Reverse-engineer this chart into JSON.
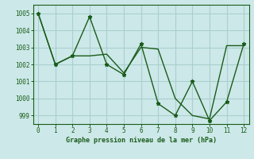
{
  "line1_x": [
    0,
    1,
    2,
    3,
    4,
    5,
    6,
    7,
    8,
    9,
    10,
    11,
    12
  ],
  "line1_y": [
    1005,
    1002,
    1002.5,
    1004.8,
    1002,
    1001.4,
    1003.2,
    999.7,
    999.0,
    1001.0,
    998.7,
    999.8,
    1003.2
  ],
  "line2_x": [
    0,
    1,
    2,
    3,
    4,
    5,
    6,
    7,
    8,
    9,
    10,
    11,
    12
  ],
  "line2_y": [
    1005,
    1002,
    1002.5,
    1002.5,
    1002.6,
    1001.5,
    1003.0,
    1002.9,
    1000.0,
    999.0,
    998.8,
    1003.1,
    1003.1
  ],
  "line_color": "#1a5c1a",
  "bg_color": "#cce8e8",
  "grid_color": "#aacfcf",
  "xlabel": "Graphe pression niveau de la mer (hPa)",
  "xlim": [
    -0.3,
    12.3
  ],
  "ylim": [
    998.5,
    1005.5
  ],
  "yticks": [
    999,
    1000,
    1001,
    1002,
    1003,
    1004,
    1005
  ],
  "xticks": [
    0,
    1,
    2,
    3,
    4,
    5,
    6,
    7,
    8,
    9,
    10,
    11,
    12
  ]
}
